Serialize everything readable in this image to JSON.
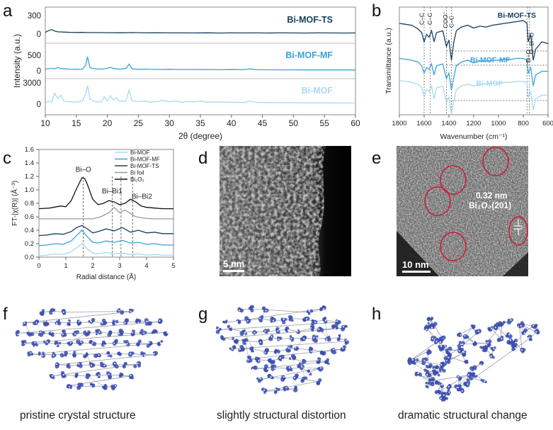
{
  "panels": {
    "a": {
      "letter": "a",
      "chart_data": {
        "type": "line",
        "xlabel": "2θ (degree)",
        "ylabel": "Intensity (a.u.)",
        "xlim": [
          10,
          60
        ],
        "xticks": [
          10,
          15,
          20,
          25,
          30,
          35,
          40,
          45,
          50,
          55,
          60
        ],
        "series": [
          {
            "name": "Bi-MOF-TS",
            "color": "#16405e",
            "yticks": [
              "300",
              "0"
            ],
            "x": [
              10,
              10.5,
              11,
              11.5,
              12,
              13,
              14,
              15,
              16,
              17,
              18,
              20,
              22,
              24,
              26,
              28,
              30,
              32,
              34,
              36,
              38,
              40,
              42,
              44,
              46,
              48,
              50,
              52,
              54,
              56,
              58,
              60
            ],
            "y": [
              30,
              60,
              80,
              55,
              40,
              35,
              30,
              28,
              30,
              26,
              25,
              24,
              22,
              25,
              20,
              22,
              20,
              21,
              19,
              22,
              18,
              20,
              19,
              21,
              18,
              20,
              19,
              18,
              20,
              19,
              18,
              19
            ]
          },
          {
            "name": "Bi-MOF-MF",
            "color": "#3aa3d8",
            "yticks": [
              "500",
              "0"
            ],
            "x": [
              10,
              11,
              11.5,
              12,
              12.5,
              13,
              14,
              15,
              16,
              16.5,
              16.8,
              17.2,
              18,
              19,
              20,
              20.5,
              21,
              22,
              23,
              23.5,
              24,
              25,
              26,
              28,
              30,
              32,
              34,
              36,
              38,
              40,
              42,
              43,
              44,
              46,
              48,
              50,
              52,
              54,
              56,
              58,
              60
            ],
            "y": [
              60,
              90,
              70,
              120,
              80,
              70,
              60,
              55,
              60,
              200,
              500,
              110,
              70,
              60,
              90,
              130,
              80,
              60,
              80,
              240,
              70,
              55,
              60,
              50,
              55,
              45,
              50,
              45,
              40,
              45,
              40,
              70,
              40,
              38,
              36,
              35,
              34,
              33,
              32,
              32,
              30
            ]
          },
          {
            "name": "Bi-MOF",
            "color": "#a8daf0",
            "yticks": [
              "3000",
              "0"
            ],
            "x": [
              10,
              10.5,
              11,
              11.5,
              12,
              12.5,
              13,
              14,
              15,
              16,
              16.5,
              16.8,
              17.2,
              18,
              19,
              19.5,
              20,
              20.5,
              21,
              21.5,
              22,
              23,
              23.5,
              24,
              25,
              26,
              27,
              28,
              29,
              30,
              31,
              32,
              33,
              34,
              35,
              36,
              38,
              40,
              42,
              43,
              44,
              46,
              48,
              50,
              52,
              54,
              56,
              58,
              60
            ],
            "y": [
              200,
              500,
              300,
              1700,
              900,
              1400,
              500,
              350,
              300,
              500,
              1600,
              2900,
              800,
              400,
              300,
              1200,
              500,
              1300,
              600,
              1000,
              400,
              500,
              2200,
              500,
              400,
              500,
              300,
              400,
              600,
              350,
              500,
              300,
              400,
              350,
              500,
              300,
              350,
              300,
              250,
              500,
              280,
              250,
              220,
              220,
              200,
              200,
              190,
              180,
              170
            ]
          }
        ]
      }
    },
    "b": {
      "letter": "b",
      "chart_data": {
        "type": "line",
        "xlabel": "Wavenumber (cm⁻¹)",
        "ylabel": "Transmittance (a.u.)",
        "xlim": [
          1800,
          600
        ],
        "xticks": [
          1800,
          1600,
          1400,
          1200,
          1000,
          800,
          600
        ],
        "series": [
          {
            "name": "Bi-MOF-TS",
            "color": "#16405e",
            "x": [
              1800,
              1750,
              1700,
              1650,
              1620,
              1600,
              1580,
              1560,
              1540,
              1520,
              1500,
              1450,
              1420,
              1400,
              1380,
              1360,
              1340,
              1300,
              1250,
              1200,
              1150,
              1100,
              1050,
              1000,
              950,
              900,
              850,
              800,
              770,
              760,
              740,
              720,
              700,
              650,
              600
            ],
            "y": [
              0.9,
              0.89,
              0.88,
              0.84,
              0.8,
              0.7,
              0.78,
              0.75,
              0.82,
              0.7,
              0.8,
              0.82,
              0.65,
              0.72,
              0.5,
              0.7,
              0.82,
              0.86,
              0.88,
              0.85,
              0.87,
              0.86,
              0.88,
              0.89,
              0.9,
              0.91,
              0.92,
              0.93,
              0.9,
              0.7,
              0.78,
              0.5,
              0.62,
              0.7,
              0.68
            ]
          },
          {
            "name": "Bi-MOF-MF",
            "color": "#3aa3d8",
            "x": [
              1800,
              1750,
              1700,
              1650,
              1620,
              1600,
              1580,
              1560,
              1540,
              1520,
              1500,
              1450,
              1420,
              1400,
              1380,
              1360,
              1340,
              1300,
              1250,
              1200,
              1150,
              1100,
              1050,
              1000,
              950,
              900,
              850,
              800,
              770,
              760,
              740,
              720,
              700,
              650,
              600
            ],
            "y": [
              0.52,
              0.51,
              0.5,
              0.48,
              0.44,
              0.36,
              0.42,
              0.4,
              0.46,
              0.34,
              0.44,
              0.46,
              0.3,
              0.36,
              0.18,
              0.32,
              0.44,
              0.48,
              0.5,
              0.47,
              0.49,
              0.49,
              0.5,
              0.5,
              0.51,
              0.51,
              0.52,
              0.52,
              0.5,
              0.36,
              0.42,
              0.22,
              0.34,
              0.38,
              0.38
            ]
          },
          {
            "name": "Bi-MOF",
            "color": "#a8daf0",
            "x": [
              1800,
              1750,
              1700,
              1650,
              1620,
              1600,
              1580,
              1560,
              1540,
              1520,
              1500,
              1450,
              1420,
              1400,
              1380,
              1360,
              1340,
              1300,
              1250,
              1200,
              1150,
              1100,
              1050,
              1000,
              950,
              900,
              850,
              800,
              770,
              760,
              740,
              720,
              700,
              650,
              600
            ],
            "y": [
              0.28,
              0.27,
              0.26,
              0.24,
              0.2,
              0.1,
              0.18,
              0.16,
              0.22,
              0.08,
              0.2,
              0.22,
              0.04,
              0.1,
              -0.08,
              0.06,
              0.18,
              0.22,
              0.24,
              0.22,
              0.24,
              0.24,
              0.25,
              0.25,
              0.26,
              0.26,
              0.27,
              0.27,
              0.25,
              0.1,
              0.16,
              -0.04,
              0.08,
              0.12,
              0.12
            ]
          }
        ],
        "annotations": [
          "C–C",
          "C–C",
          "COO⁻",
          "C–C",
          "Bi–O",
          "O–Bi–O"
        ]
      }
    },
    "c": {
      "letter": "c",
      "chart_data": {
        "type": "line",
        "xlabel": "Radial distance (Å)",
        "ylabel": "FT-|χ(R)| (Å⁻³)",
        "xlim": [
          0,
          5
        ],
        "ylim": [
          0,
          1.6
        ],
        "xticks": [
          0,
          1,
          2,
          3,
          4,
          5
        ],
        "yticks": [
          0.0,
          0.2,
          0.4,
          0.6,
          0.8,
          1.0,
          1.2,
          1.4,
          1.6
        ],
        "series": [
          {
            "name": "Bi-MOF",
            "color": "#a8daf0",
            "x": [
              0,
              0.3,
              0.6,
              0.9,
              1.2,
              1.4,
              1.6,
              1.8,
              2.0,
              2.2,
              2.5,
              2.8,
              3.1,
              3.4,
              3.7,
              4.0,
              4.3,
              4.6,
              5.0
            ],
            "y": [
              0.02,
              0.03,
              0.05,
              0.04,
              0.08,
              0.14,
              0.2,
              0.12,
              0.06,
              0.05,
              0.07,
              0.05,
              0.06,
              0.04,
              0.05,
              0.03,
              0.04,
              0.03,
              0.03
            ]
          },
          {
            "name": "Bi-MOF-MF",
            "color": "#3aa3d8",
            "x": [
              0,
              0.3,
              0.6,
              0.9,
              1.2,
              1.4,
              1.6,
              1.8,
              2.0,
              2.2,
              2.5,
              2.8,
              3.1,
              3.4,
              3.7,
              4.0,
              4.3,
              4.6,
              5.0
            ],
            "y": [
              0.17,
              0.18,
              0.2,
              0.19,
              0.24,
              0.32,
              0.4,
              0.3,
              0.22,
              0.21,
              0.24,
              0.22,
              0.25,
              0.21,
              0.22,
              0.19,
              0.2,
              0.18,
              0.18
            ]
          },
          {
            "name": "Bi-MOF-TS",
            "color": "#16405e",
            "x": [
              0,
              0.3,
              0.6,
              0.9,
              1.2,
              1.4,
              1.6,
              1.8,
              2.0,
              2.2,
              2.5,
              2.8,
              3.1,
              3.4,
              3.7,
              4.0,
              4.3,
              4.6,
              5.0
            ],
            "y": [
              0.32,
              0.33,
              0.35,
              0.34,
              0.38,
              0.44,
              0.47,
              0.42,
              0.36,
              0.38,
              0.42,
              0.39,
              0.44,
              0.37,
              0.4,
              0.36,
              0.37,
              0.35,
              0.35
            ]
          },
          {
            "name": "Bi foil",
            "color": "#999999",
            "x": [
              0,
              0.5,
              1.0,
              1.5,
              2.0,
              2.3,
              2.6,
              2.8,
              3.0,
              3.2,
              3.4,
              3.6,
              3.9,
              4.2,
              4.5,
              5.0
            ],
            "y": [
              0.57,
              0.57,
              0.57,
              0.57,
              0.57,
              0.6,
              0.66,
              0.74,
              0.66,
              0.7,
              0.65,
              0.6,
              0.58,
              0.57,
              0.57,
              0.57
            ]
          },
          {
            "name": "Bi₂O₃",
            "color": "#111111",
            "x": [
              0,
              0.4,
              0.8,
              1.0,
              1.2,
              1.4,
              1.6,
              1.7,
              1.8,
              2.0,
              2.2,
              2.4,
              2.6,
              2.8,
              3.0,
              3.2,
              3.4,
              3.6,
              3.8,
              4.0,
              4.3,
              4.6,
              5.0
            ],
            "y": [
              0.72,
              0.73,
              0.76,
              0.75,
              0.84,
              1.02,
              1.18,
              1.17,
              1.08,
              0.86,
              0.78,
              0.8,
              0.84,
              0.82,
              0.78,
              0.8,
              0.86,
              0.82,
              0.76,
              0.74,
              0.73,
              0.72,
              0.72
            ]
          }
        ],
        "annotations": [
          "Bi–O",
          "Bi–Bi1",
          "Bi–Bi2"
        ]
      }
    },
    "d": {
      "letter": "d",
      "scale_bar": "5 nm"
    },
    "e": {
      "letter": "e",
      "scale_bar": "10 nm",
      "annotation_line1": "0.32 nm",
      "annotation_line2": "Bi₂O₃(201)"
    },
    "f": {
      "letter": "f",
      "caption": "pristine crystal structure"
    },
    "g": {
      "letter": "g",
      "caption": "slightly structural distortion"
    },
    "h": {
      "letter": "h",
      "caption": "dramatic structural change"
    }
  },
  "colors": {
    "ts": "#16405e",
    "mf": "#3aa3d8",
    "mof": "#a8daf0",
    "atom_blue": "#3b4fb0"
  }
}
